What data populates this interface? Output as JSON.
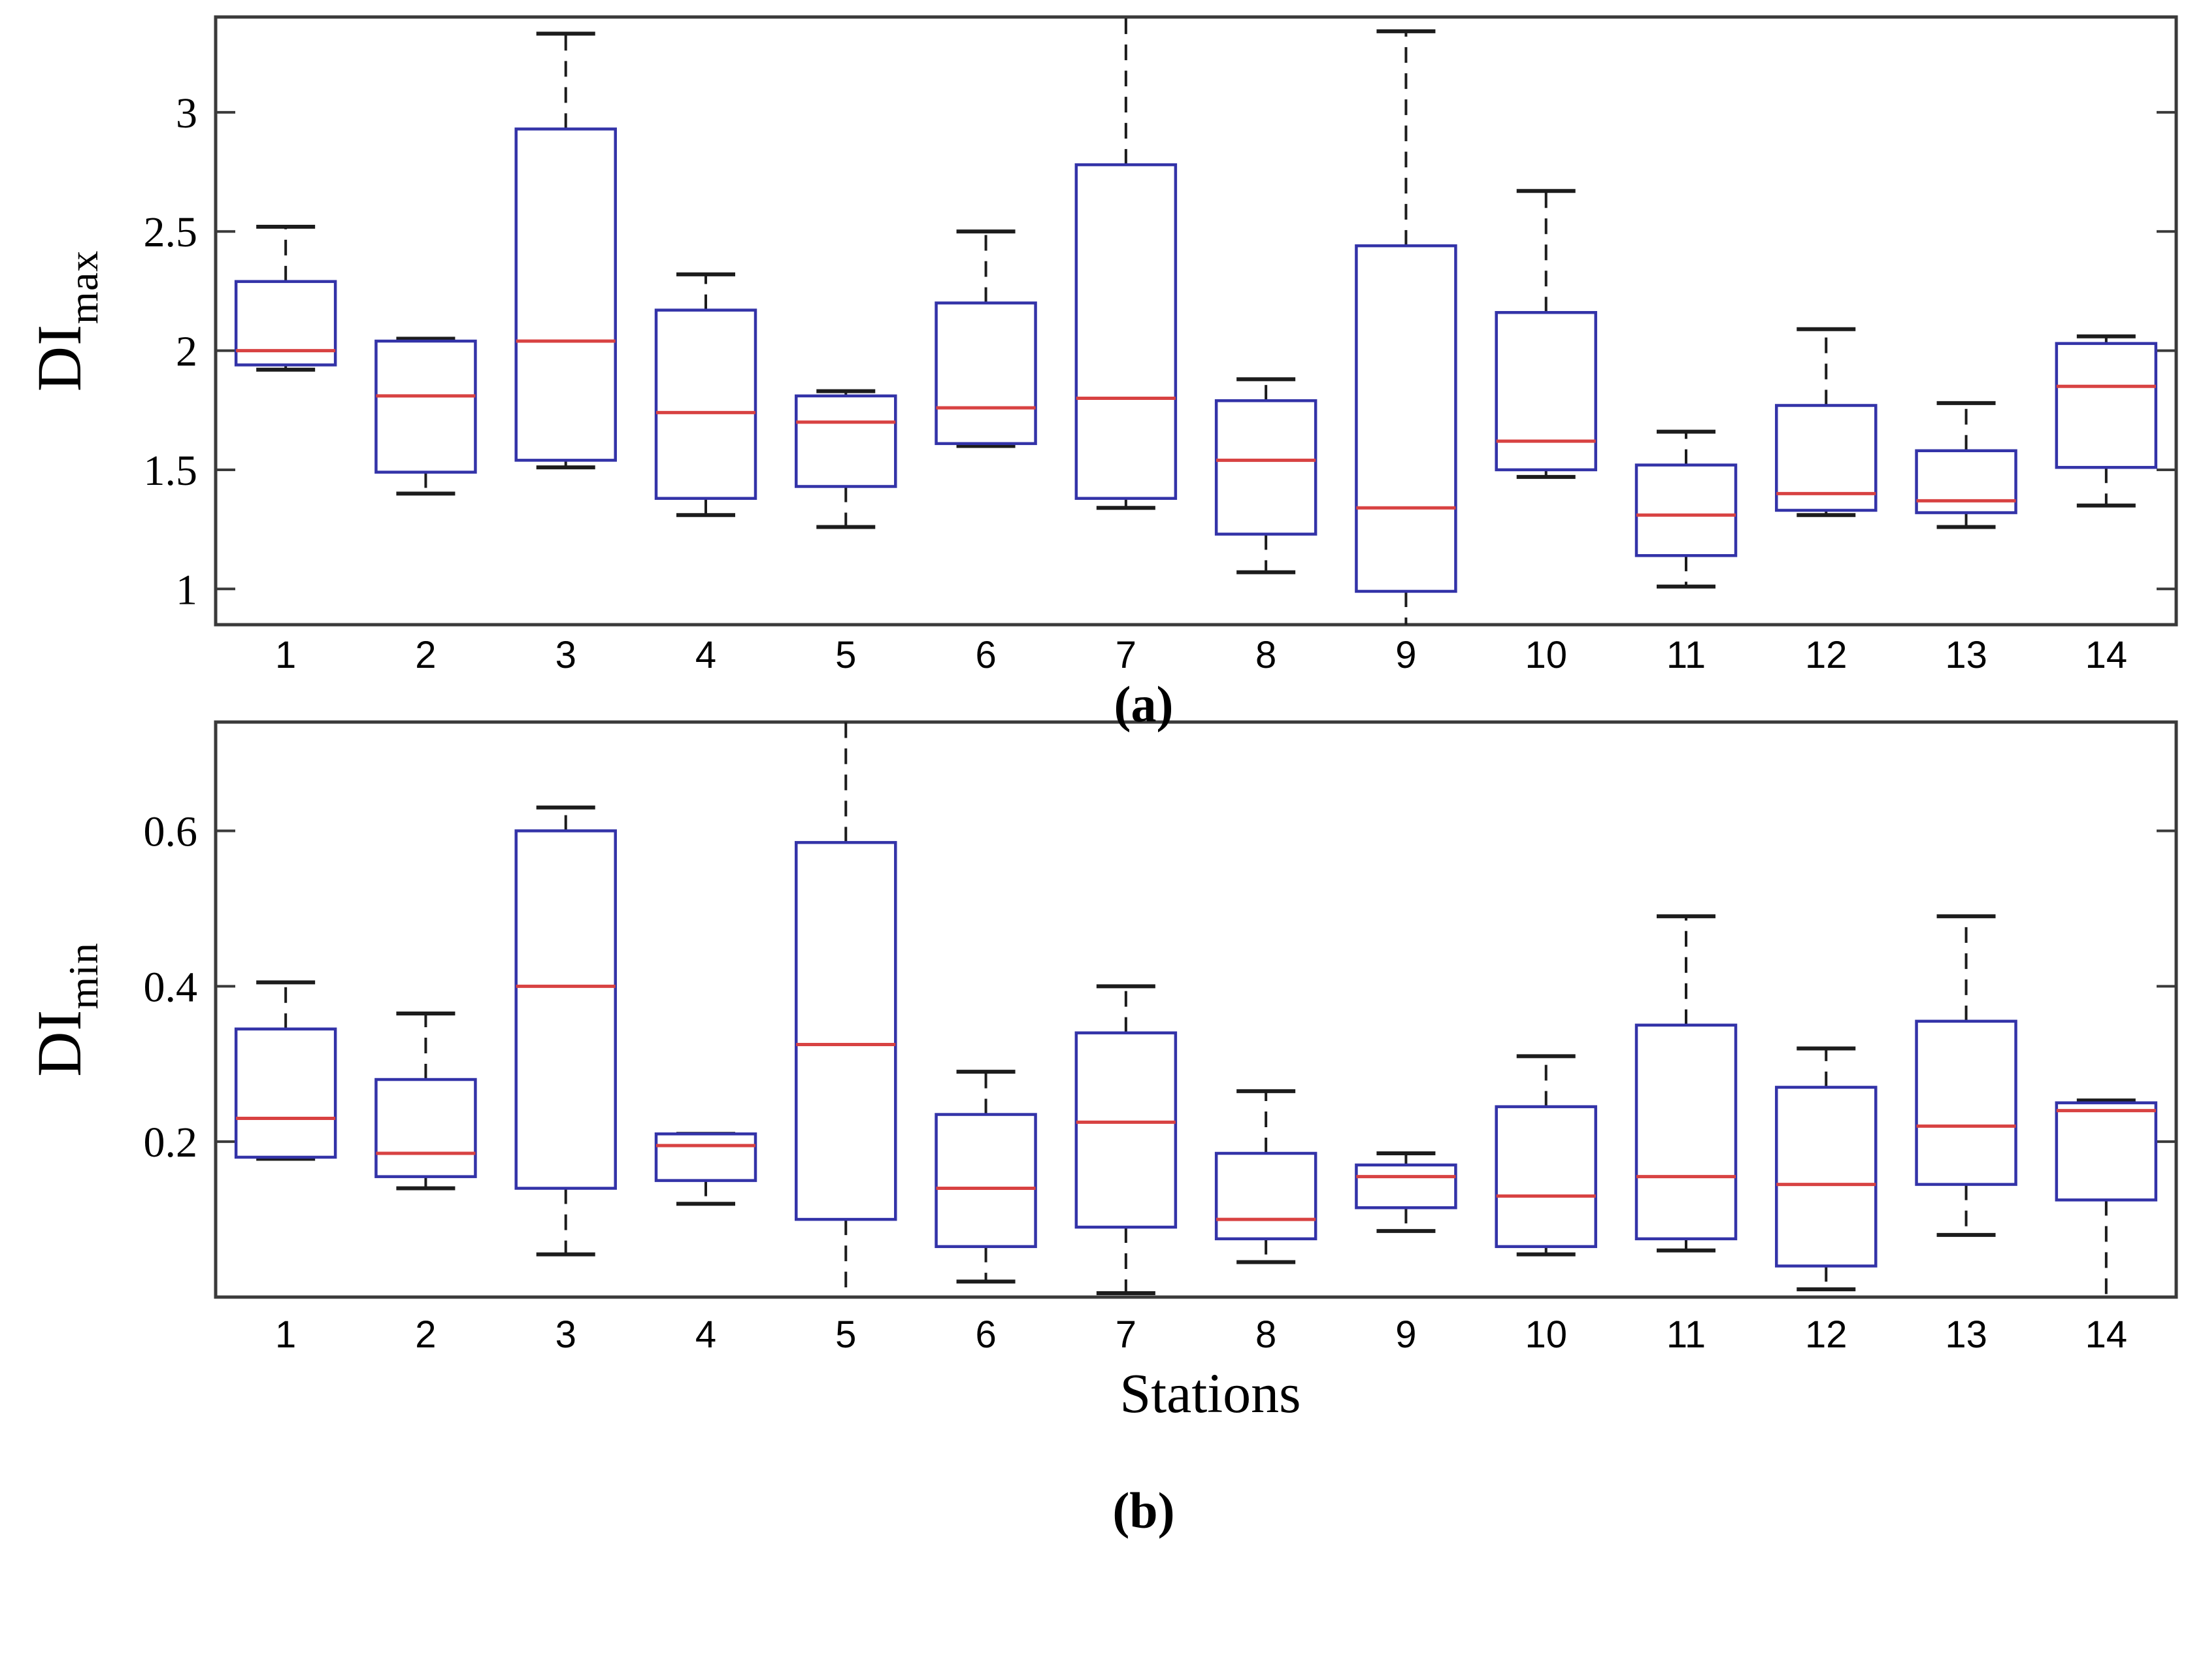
{
  "figure": {
    "panel_a_label": "(a)",
    "panel_b_label": "(b)",
    "x_axis_title": "Stations",
    "ylabel_a_main": "DI",
    "ylabel_a_sub": "max",
    "ylabel_b_main": "DI",
    "ylabel_b_sub": "min"
  },
  "colors": {
    "box_edge": "#3333a8",
    "median": "#d84242",
    "whisker": "#1c1c1c",
    "cap": "#1c1c1c",
    "frame": "#3a3a3a",
    "text": "#000000"
  },
  "chart_data": [
    {
      "type": "boxplot",
      "panel": "a",
      "title": "",
      "xlabel": "",
      "ylabel": "DI_max",
      "categories": [
        "1",
        "2",
        "3",
        "4",
        "5",
        "6",
        "7",
        "8",
        "9",
        "10",
        "11",
        "12",
        "13",
        "14"
      ],
      "ylim": [
        0.85,
        3.4
      ],
      "yticks": [
        1,
        1.5,
        2,
        2.5,
        3
      ],
      "ytick_labels": [
        "1",
        "1.5",
        "2",
        "2.5",
        "3"
      ],
      "grid": false,
      "legend": null,
      "boxes": [
        {
          "station": "1",
          "low": 1.92,
          "q1": 1.94,
          "median": 2.0,
          "q3": 2.29,
          "high": 2.52
        },
        {
          "station": "2",
          "low": 1.4,
          "q1": 1.49,
          "median": 1.81,
          "q3": 2.04,
          "high": 2.05
        },
        {
          "station": "3",
          "low": 1.51,
          "q1": 1.54,
          "median": 2.04,
          "q3": 2.93,
          "high": 3.33
        },
        {
          "station": "4",
          "low": 1.31,
          "q1": 1.38,
          "median": 1.74,
          "q3": 2.17,
          "high": 2.32
        },
        {
          "station": "5",
          "low": 1.26,
          "q1": 1.43,
          "median": 1.7,
          "q3": 1.81,
          "high": 1.83
        },
        {
          "station": "6",
          "low": 1.6,
          "q1": 1.61,
          "median": 1.76,
          "q3": 2.2,
          "high": 2.5
        },
        {
          "station": "7",
          "low": 1.34,
          "q1": 1.38,
          "median": 1.8,
          "q3": 2.78,
          "high": 3.4,
          "clip_high": true
        },
        {
          "station": "8",
          "low": 1.07,
          "q1": 1.23,
          "median": 1.54,
          "q3": 1.79,
          "high": 1.88
        },
        {
          "station": "9",
          "low": 0.85,
          "q1": 0.99,
          "median": 1.34,
          "q3": 2.44,
          "high": 3.34,
          "clip_low": true
        },
        {
          "station": "10",
          "low": 1.47,
          "q1": 1.5,
          "median": 1.62,
          "q3": 2.16,
          "high": 2.67
        },
        {
          "station": "11",
          "low": 1.01,
          "q1": 1.14,
          "median": 1.31,
          "q3": 1.52,
          "high": 1.66
        },
        {
          "station": "12",
          "low": 1.31,
          "q1": 1.33,
          "median": 1.4,
          "q3": 1.77,
          "high": 2.09
        },
        {
          "station": "13",
          "low": 1.26,
          "q1": 1.32,
          "median": 1.37,
          "q3": 1.58,
          "high": 1.78
        },
        {
          "station": "14",
          "low": 1.35,
          "q1": 1.51,
          "median": 1.85,
          "q3": 2.03,
          "high": 2.06
        }
      ]
    },
    {
      "type": "boxplot",
      "panel": "b",
      "title": "",
      "xlabel": "Stations",
      "ylabel": "DI_min",
      "categories": [
        "1",
        "2",
        "3",
        "4",
        "5",
        "6",
        "7",
        "8",
        "9",
        "10",
        "11",
        "12",
        "13",
        "14"
      ],
      "ylim": [
        0.0,
        0.74
      ],
      "yticks": [
        0.2,
        0.4,
        0.6
      ],
      "ytick_labels": [
        "0.2",
        "0.4",
        "0.6"
      ],
      "grid": false,
      "legend": null,
      "boxes": [
        {
          "station": "1",
          "low": 0.178,
          "q1": 0.18,
          "median": 0.23,
          "q3": 0.345,
          "high": 0.405
        },
        {
          "station": "2",
          "low": 0.14,
          "q1": 0.155,
          "median": 0.185,
          "q3": 0.28,
          "high": 0.365
        },
        {
          "station": "3",
          "low": 0.055,
          "q1": 0.14,
          "median": 0.4,
          "q3": 0.6,
          "high": 0.63
        },
        {
          "station": "4",
          "low": 0.12,
          "q1": 0.15,
          "median": 0.195,
          "q3": 0.21,
          "high": 0.21
        },
        {
          "station": "5",
          "low": 0.0,
          "q1": 0.1,
          "median": 0.325,
          "q3": 0.585,
          "high": 0.74,
          "clip_low": true,
          "clip_high": true
        },
        {
          "station": "6",
          "low": 0.02,
          "q1": 0.065,
          "median": 0.14,
          "q3": 0.235,
          "high": 0.29
        },
        {
          "station": "7",
          "low": 0.005,
          "q1": 0.09,
          "median": 0.225,
          "q3": 0.34,
          "high": 0.4
        },
        {
          "station": "8",
          "low": 0.045,
          "q1": 0.075,
          "median": 0.1,
          "q3": 0.185,
          "high": 0.265
        },
        {
          "station": "9",
          "low": 0.085,
          "q1": 0.115,
          "median": 0.155,
          "q3": 0.17,
          "high": 0.185
        },
        {
          "station": "10",
          "low": 0.055,
          "q1": 0.065,
          "median": 0.13,
          "q3": 0.245,
          "high": 0.31
        },
        {
          "station": "11",
          "low": 0.06,
          "q1": 0.075,
          "median": 0.155,
          "q3": 0.35,
          "high": 0.49
        },
        {
          "station": "12",
          "low": 0.01,
          "q1": 0.04,
          "median": 0.145,
          "q3": 0.27,
          "high": 0.32
        },
        {
          "station": "13",
          "low": 0.08,
          "q1": 0.145,
          "median": 0.22,
          "q3": 0.355,
          "high": 0.49
        },
        {
          "station": "14",
          "low": 0.0,
          "q1": 0.125,
          "median": 0.24,
          "q3": 0.25,
          "high": 0.253,
          "clip_low": true
        }
      ]
    }
  ]
}
